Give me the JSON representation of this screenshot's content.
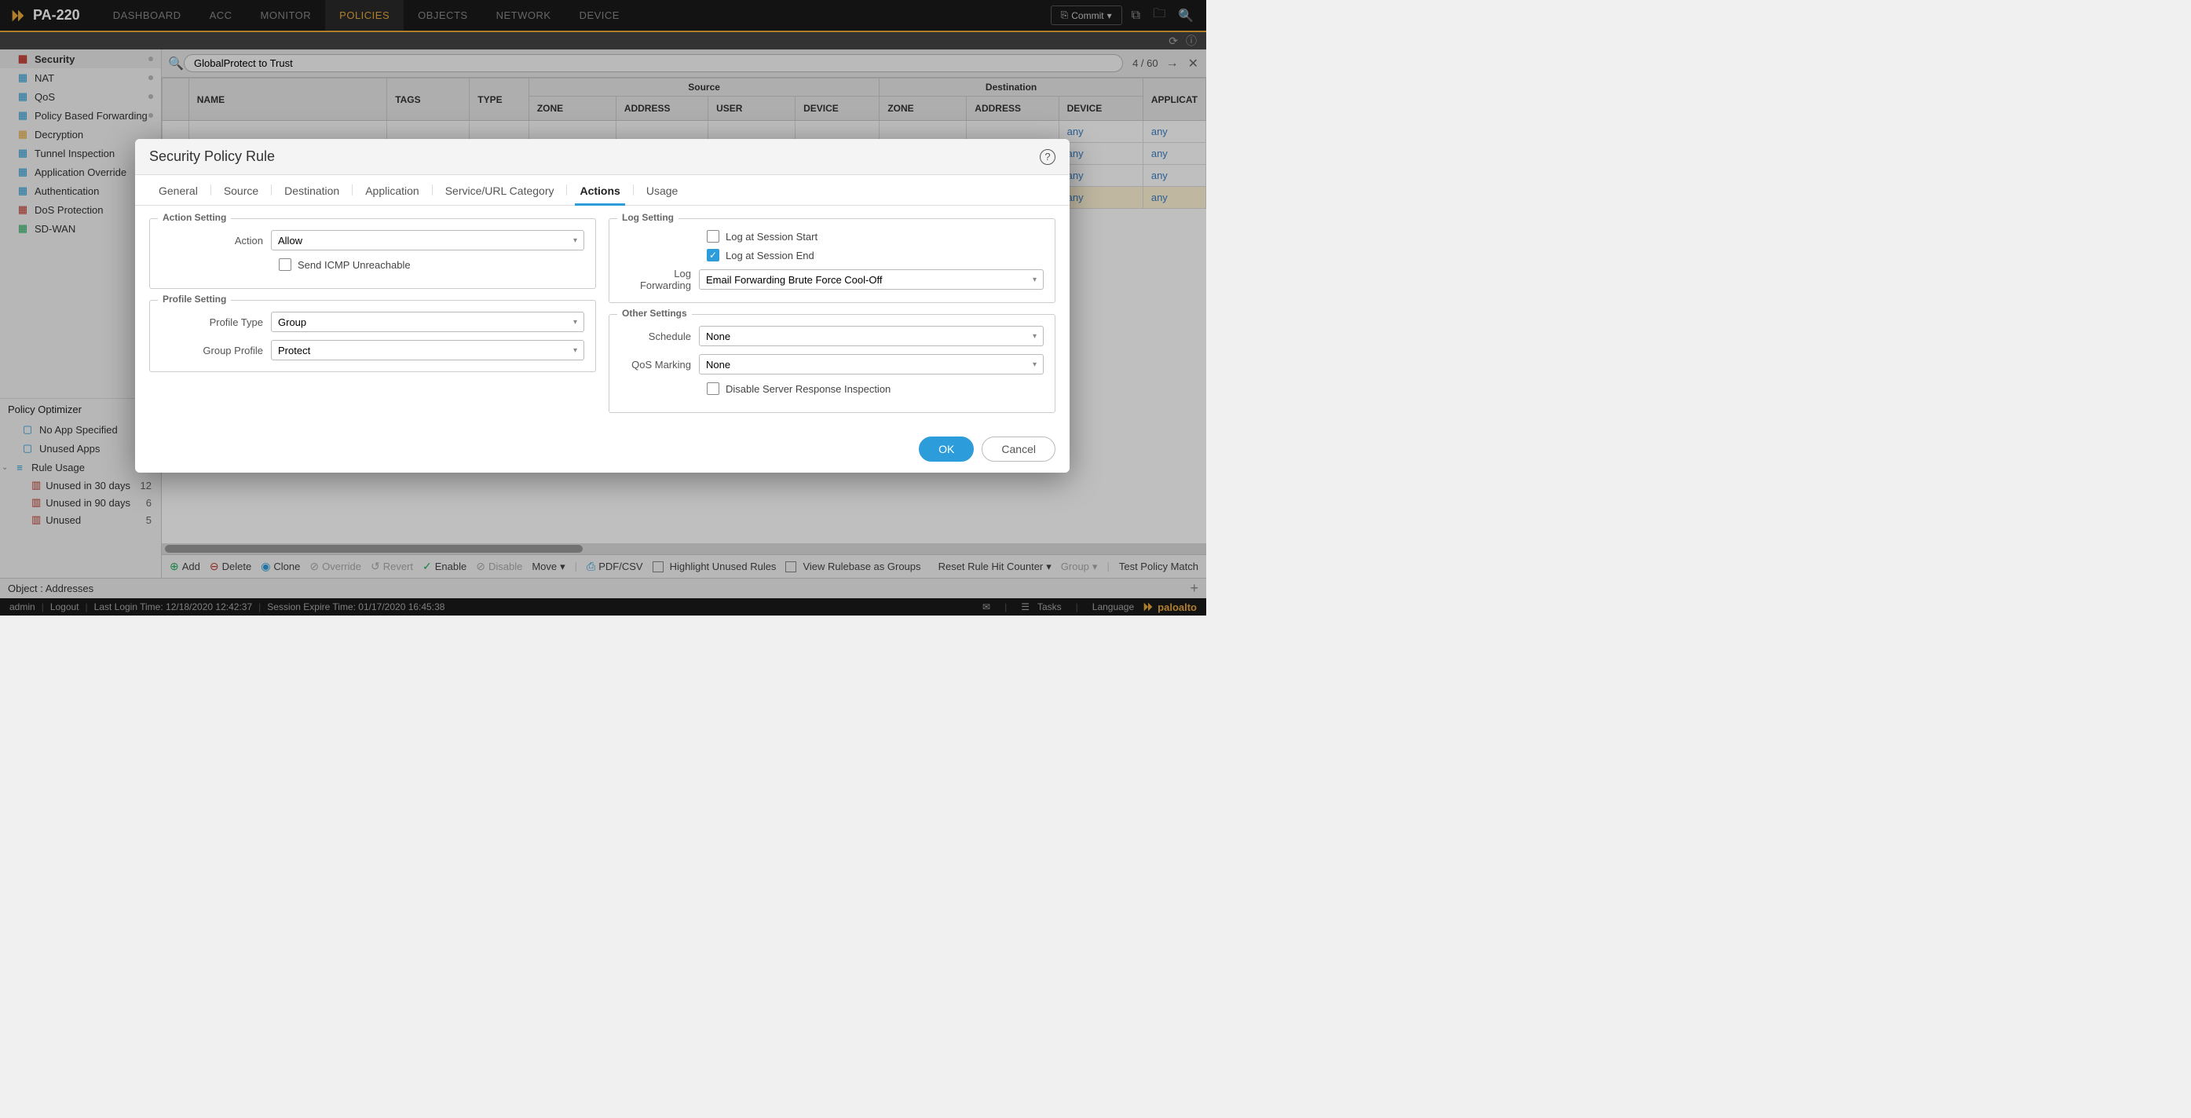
{
  "header": {
    "device_model": "PA-220",
    "nav": [
      "DASHBOARD",
      "ACC",
      "MONITOR",
      "POLICIES",
      "OBJECTS",
      "NETWORK",
      "DEVICE"
    ],
    "active_nav": "POLICIES",
    "commit_label": "Commit"
  },
  "sidebar": {
    "items": [
      {
        "label": "Security",
        "active": true,
        "dot": true,
        "icon_color": "#c0392b"
      },
      {
        "label": "NAT",
        "dot": true,
        "icon_color": "#2d9cdb"
      },
      {
        "label": "QoS",
        "dot": true,
        "icon_color": "#2d9cdb"
      },
      {
        "label": "Policy Based Forwarding",
        "dot": true,
        "icon_color": "#2d9cdb"
      },
      {
        "label": "Decryption",
        "icon_color": "#e8a93c"
      },
      {
        "label": "Tunnel Inspection",
        "icon_color": "#2d9cdb"
      },
      {
        "label": "Application Override",
        "icon_color": "#2d9cdb"
      },
      {
        "label": "Authentication",
        "icon_color": "#2d9cdb"
      },
      {
        "label": "DoS Protection",
        "icon_color": "#c0392b"
      },
      {
        "label": "SD-WAN",
        "icon_color": "#27ae60"
      }
    ],
    "optimizer_title": "Policy Optimizer",
    "optimizer_items": [
      {
        "label": "No App Specified"
      },
      {
        "label": "Unused Apps"
      }
    ],
    "rule_usage_label": "Rule Usage",
    "rule_usage_items": [
      {
        "label": "Unused in 30 days",
        "count": "12"
      },
      {
        "label": "Unused in 90 days",
        "count": "6"
      },
      {
        "label": "Unused",
        "count": "5"
      }
    ]
  },
  "search": {
    "value": "GlobalProtect to Trust",
    "counter": "4 / 60"
  },
  "table": {
    "group_source": "Source",
    "group_dest": "Destination",
    "cols": [
      "NAME",
      "TAGS",
      "TYPE",
      "ZONE",
      "ADDRESS",
      "USER",
      "DEVICE",
      "ZONE",
      "ADDRESS",
      "DEVICE",
      "APPLICAT"
    ],
    "rows": [
      {
        "dest_device": "any",
        "app": "any"
      },
      {
        "dest_device": "any",
        "app": "any"
      },
      {
        "dest_device": "any",
        "app": "any"
      },
      {
        "dest_device": "any",
        "app": "any",
        "highlighted": true
      }
    ]
  },
  "toolbar": {
    "add": "Add",
    "delete": "Delete",
    "clone": "Clone",
    "override": "Override",
    "revert": "Revert",
    "enable": "Enable",
    "disable": "Disable",
    "move": "Move",
    "pdf": "PDF/CSV",
    "highlight": "Highlight Unused Rules",
    "viewgroups": "View Rulebase as Groups",
    "reset": "Reset Rule Hit Counter",
    "group": "Group",
    "test": "Test Policy Match"
  },
  "objectbar": {
    "label": "Object : Addresses"
  },
  "statusbar": {
    "user": "admin",
    "logout": "Logout",
    "last_login": "Last Login Time: 12/18/2020 12:42:37",
    "session_expire": "Session Expire Time: 01/17/2020 16:45:38",
    "tasks": "Tasks",
    "language": "Language",
    "brand": "paloalto"
  },
  "modal": {
    "title": "Security Policy Rule",
    "tabs": [
      "General",
      "Source",
      "Destination",
      "Application",
      "Service/URL Category",
      "Actions",
      "Usage"
    ],
    "active_tab": "Actions",
    "action_setting": {
      "legend": "Action Setting",
      "action_label": "Action",
      "action_value": "Allow",
      "icmp_label": "Send ICMP Unreachable",
      "icmp_checked": false
    },
    "profile_setting": {
      "legend": "Profile Setting",
      "profile_type_label": "Profile Type",
      "profile_type_value": "Group",
      "group_profile_label": "Group Profile",
      "group_profile_value": "Protect"
    },
    "log_setting": {
      "legend": "Log Setting",
      "log_start_label": "Log at Session Start",
      "log_start_checked": false,
      "log_end_label": "Log at Session End",
      "log_end_checked": true,
      "log_fwd_label": "Log Forwarding",
      "log_fwd_value": "Email Forwarding Brute Force Cool-Off"
    },
    "other_settings": {
      "legend": "Other Settings",
      "schedule_label": "Schedule",
      "schedule_value": "None",
      "qos_label": "QoS Marking",
      "qos_value": "None",
      "dsri_label": "Disable Server Response Inspection",
      "dsri_checked": false
    },
    "ok": "OK",
    "cancel": "Cancel"
  }
}
